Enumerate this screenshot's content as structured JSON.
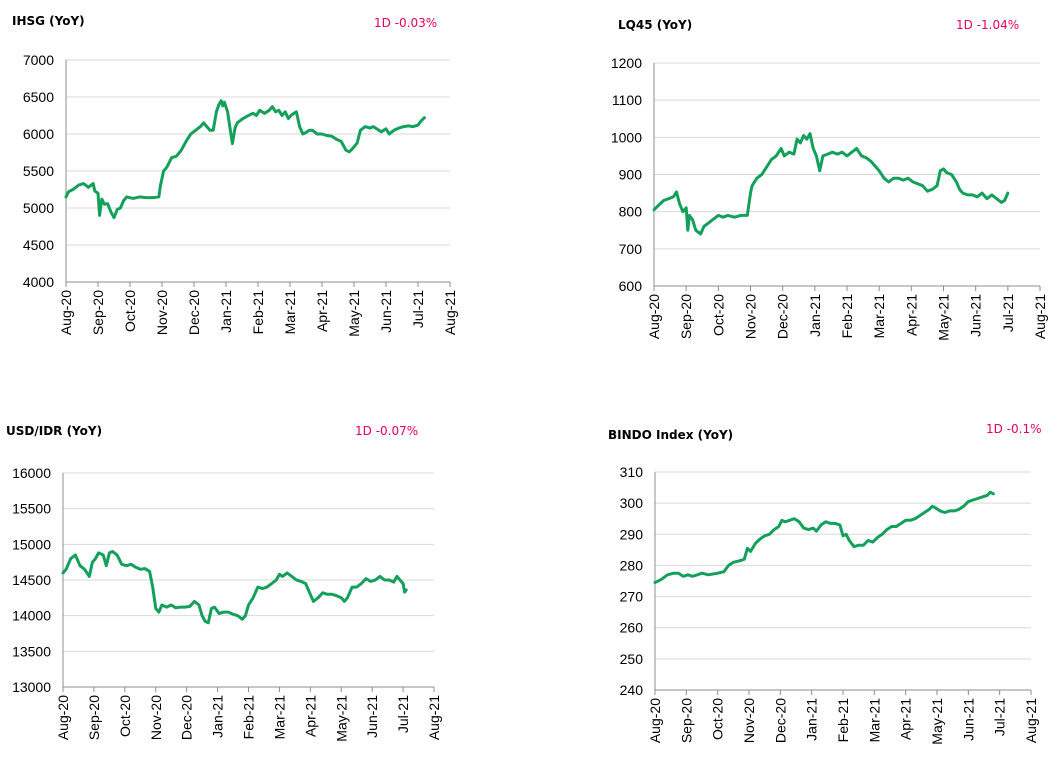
{
  "colors": {
    "line": "#12a05a",
    "change": "#e6005c",
    "grid": "#d9d9d9",
    "axis": "#8c8c8c"
  },
  "months": [
    "Aug-20",
    "Sep-20",
    "Oct-20",
    "Nov-20",
    "Dec-20",
    "Jan-21",
    "Feb-21",
    "Mar-21",
    "Apr-21",
    "May-21",
    "Jun-21",
    "Jul-21",
    "Aug-21"
  ],
  "chart_data": [
    {
      "id": "ihsg",
      "type": "line",
      "title": "IHSG (YoY)",
      "change": "1D -0.03%",
      "ylim": [
        4000,
        7000
      ],
      "yticks": [
        4000,
        4500,
        5000,
        5500,
        6000,
        6500,
        7000
      ],
      "points": [
        [
          0,
          5150
        ],
        [
          0.08,
          5220
        ],
        [
          0.22,
          5250
        ],
        [
          0.4,
          5310
        ],
        [
          0.55,
          5330
        ],
        [
          0.7,
          5280
        ],
        [
          0.85,
          5330
        ],
        [
          0.9,
          5230
        ],
        [
          1.0,
          5200
        ],
        [
          1.05,
          4900
        ],
        [
          1.12,
          5120
        ],
        [
          1.2,
          5050
        ],
        [
          1.3,
          5060
        ],
        [
          1.4,
          4950
        ],
        [
          1.5,
          4870
        ],
        [
          1.6,
          4980
        ],
        [
          1.7,
          5000
        ],
        [
          1.8,
          5100
        ],
        [
          1.9,
          5150
        ],
        [
          2.1,
          5130
        ],
        [
          2.3,
          5150
        ],
        [
          2.5,
          5140
        ],
        [
          2.7,
          5140
        ],
        [
          2.9,
          5150
        ],
        [
          2.95,
          5300
        ],
        [
          3.05,
          5500
        ],
        [
          3.15,
          5550
        ],
        [
          3.3,
          5680
        ],
        [
          3.45,
          5700
        ],
        [
          3.6,
          5780
        ],
        [
          3.75,
          5900
        ],
        [
          3.9,
          6000
        ],
        [
          4.05,
          6050
        ],
        [
          4.2,
          6100
        ],
        [
          4.3,
          6150
        ],
        [
          4.4,
          6100
        ],
        [
          4.5,
          6050
        ],
        [
          4.6,
          6050
        ],
        [
          4.7,
          6300
        ],
        [
          4.78,
          6400
        ],
        [
          4.85,
          6450
        ],
        [
          4.9,
          6380
        ],
        [
          4.95,
          6430
        ],
        [
          5.05,
          6300
        ],
        [
          5.12,
          6100
        ],
        [
          5.2,
          5870
        ],
        [
          5.28,
          6080
        ],
        [
          5.35,
          6150
        ],
        [
          5.5,
          6200
        ],
        [
          5.7,
          6250
        ],
        [
          5.85,
          6280
        ],
        [
          5.95,
          6250
        ],
        [
          6.05,
          6320
        ],
        [
          6.2,
          6280
        ],
        [
          6.35,
          6320
        ],
        [
          6.45,
          6370
        ],
        [
          6.55,
          6300
        ],
        [
          6.65,
          6320
        ],
        [
          6.75,
          6250
        ],
        [
          6.85,
          6300
        ],
        [
          6.95,
          6210
        ],
        [
          7.05,
          6260
        ],
        [
          7.2,
          6300
        ],
        [
          7.3,
          6100
        ],
        [
          7.4,
          6000
        ],
        [
          7.5,
          6020
        ],
        [
          7.6,
          6050
        ],
        [
          7.7,
          6050
        ],
        [
          7.85,
          6000
        ],
        [
          8.0,
          6000
        ],
        [
          8.15,
          5980
        ],
        [
          8.3,
          5970
        ],
        [
          8.45,
          5930
        ],
        [
          8.6,
          5900
        ],
        [
          8.75,
          5780
        ],
        [
          8.85,
          5760
        ],
        [
          8.95,
          5800
        ],
        [
          9.1,
          5880
        ],
        [
          9.2,
          6050
        ],
        [
          9.35,
          6100
        ],
        [
          9.5,
          6080
        ],
        [
          9.6,
          6100
        ],
        [
          9.75,
          6060
        ],
        [
          9.85,
          6030
        ],
        [
          10.0,
          6070
        ],
        [
          10.1,
          6000
        ],
        [
          10.25,
          6050
        ],
        [
          10.4,
          6080
        ],
        [
          10.55,
          6100
        ],
        [
          10.7,
          6110
        ],
        [
          10.85,
          6100
        ],
        [
          11.0,
          6120
        ],
        [
          11.1,
          6180
        ],
        [
          11.2,
          6220
        ]
      ]
    },
    {
      "id": "lq45",
      "type": "line",
      "title": "LQ45 (YoY)",
      "change": "1D -1.04%",
      "ylim": [
        600,
        1200
      ],
      "yticks": [
        600,
        700,
        800,
        900,
        1000,
        1100,
        1200
      ],
      "points": [
        [
          0,
          805
        ],
        [
          0.08,
          812
        ],
        [
          0.2,
          822
        ],
        [
          0.3,
          830
        ],
        [
          0.45,
          835
        ],
        [
          0.6,
          840
        ],
        [
          0.7,
          853
        ],
        [
          0.8,
          820
        ],
        [
          0.9,
          800
        ],
        [
          1.0,
          810
        ],
        [
          1.05,
          750
        ],
        [
          1.1,
          790
        ],
        [
          1.2,
          778
        ],
        [
          1.3,
          750
        ],
        [
          1.45,
          740
        ],
        [
          1.55,
          760
        ],
        [
          1.7,
          770
        ],
        [
          1.85,
          780
        ],
        [
          2.0,
          790
        ],
        [
          2.15,
          785
        ],
        [
          2.3,
          790
        ],
        [
          2.5,
          785
        ],
        [
          2.7,
          790
        ],
        [
          2.9,
          790
        ],
        [
          3.0,
          850
        ],
        [
          3.05,
          870
        ],
        [
          3.2,
          890
        ],
        [
          3.35,
          900
        ],
        [
          3.5,
          920
        ],
        [
          3.65,
          940
        ],
        [
          3.8,
          950
        ],
        [
          3.95,
          970
        ],
        [
          4.05,
          950
        ],
        [
          4.2,
          960
        ],
        [
          4.35,
          955
        ],
        [
          4.45,
          995
        ],
        [
          4.55,
          985
        ],
        [
          4.65,
          1005
        ],
        [
          4.75,
          995
        ],
        [
          4.85,
          1010
        ],
        [
          4.95,
          970
        ],
        [
          5.05,
          950
        ],
        [
          5.15,
          910
        ],
        [
          5.25,
          950
        ],
        [
          5.4,
          955
        ],
        [
          5.55,
          960
        ],
        [
          5.7,
          955
        ],
        [
          5.85,
          960
        ],
        [
          6.0,
          950
        ],
        [
          6.15,
          960
        ],
        [
          6.3,
          970
        ],
        [
          6.45,
          950
        ],
        [
          6.6,
          945
        ],
        [
          6.75,
          935
        ],
        [
          6.9,
          920
        ],
        [
          7.0,
          910
        ],
        [
          7.15,
          890
        ],
        [
          7.3,
          880
        ],
        [
          7.45,
          890
        ],
        [
          7.6,
          890
        ],
        [
          7.75,
          885
        ],
        [
          7.9,
          890
        ],
        [
          8.05,
          880
        ],
        [
          8.2,
          875
        ],
        [
          8.35,
          870
        ],
        [
          8.5,
          855
        ],
        [
          8.65,
          860
        ],
        [
          8.8,
          870
        ],
        [
          8.9,
          910
        ],
        [
          9.0,
          915
        ],
        [
          9.1,
          905
        ],
        [
          9.25,
          900
        ],
        [
          9.4,
          880
        ],
        [
          9.5,
          860
        ],
        [
          9.6,
          850
        ],
        [
          9.75,
          845
        ],
        [
          9.9,
          845
        ],
        [
          10.05,
          840
        ],
        [
          10.2,
          850
        ],
        [
          10.35,
          835
        ],
        [
          10.5,
          845
        ],
        [
          10.65,
          835
        ],
        [
          10.8,
          825
        ],
        [
          10.9,
          830
        ],
        [
          11.0,
          850
        ]
      ]
    },
    {
      "id": "usdidr",
      "type": "line",
      "title": "USD/IDR  (YoY)",
      "change": "1D -0.07%",
      "ylim": [
        13000,
        16000
      ],
      "yticks": [
        13000,
        13500,
        14000,
        14500,
        15000,
        15500,
        16000
      ],
      "points": [
        [
          0,
          14600
        ],
        [
          0.1,
          14650
        ],
        [
          0.25,
          14800
        ],
        [
          0.4,
          14850
        ],
        [
          0.55,
          14700
        ],
        [
          0.7,
          14650
        ],
        [
          0.85,
          14550
        ],
        [
          0.95,
          14750
        ],
        [
          1.05,
          14800
        ],
        [
          1.15,
          14880
        ],
        [
          1.3,
          14850
        ],
        [
          1.4,
          14700
        ],
        [
          1.5,
          14880
        ],
        [
          1.6,
          14900
        ],
        [
          1.75,
          14850
        ],
        [
          1.9,
          14720
        ],
        [
          2.05,
          14700
        ],
        [
          2.2,
          14720
        ],
        [
          2.35,
          14680
        ],
        [
          2.5,
          14650
        ],
        [
          2.65,
          14660
        ],
        [
          2.8,
          14620
        ],
        [
          2.9,
          14400
        ],
        [
          3.0,
          14100
        ],
        [
          3.1,
          14050
        ],
        [
          3.2,
          14150
        ],
        [
          3.35,
          14120
        ],
        [
          3.5,
          14150
        ],
        [
          3.65,
          14110
        ],
        [
          3.8,
          14120
        ],
        [
          3.95,
          14120
        ],
        [
          4.1,
          14130
        ],
        [
          4.25,
          14200
        ],
        [
          4.4,
          14150
        ],
        [
          4.5,
          14000
        ],
        [
          4.6,
          13920
        ],
        [
          4.7,
          13900
        ],
        [
          4.8,
          14100
        ],
        [
          4.9,
          14120
        ],
        [
          5.05,
          14030
        ],
        [
          5.2,
          14050
        ],
        [
          5.35,
          14050
        ],
        [
          5.5,
          14020
        ],
        [
          5.65,
          14000
        ],
        [
          5.8,
          13950
        ],
        [
          5.9,
          14000
        ],
        [
          6.0,
          14150
        ],
        [
          6.15,
          14250
        ],
        [
          6.3,
          14400
        ],
        [
          6.45,
          14380
        ],
        [
          6.6,
          14400
        ],
        [
          6.75,
          14450
        ],
        [
          6.9,
          14500
        ],
        [
          7.0,
          14580
        ],
        [
          7.1,
          14550
        ],
        [
          7.25,
          14600
        ],
        [
          7.4,
          14550
        ],
        [
          7.55,
          14500
        ],
        [
          7.7,
          14480
        ],
        [
          7.85,
          14450
        ],
        [
          8.0,
          14300
        ],
        [
          8.1,
          14200
        ],
        [
          8.25,
          14250
        ],
        [
          8.4,
          14320
        ],
        [
          8.55,
          14300
        ],
        [
          8.7,
          14300
        ],
        [
          8.85,
          14280
        ],
        [
          9.0,
          14250
        ],
        [
          9.1,
          14200
        ],
        [
          9.2,
          14250
        ],
        [
          9.35,
          14400
        ],
        [
          9.5,
          14400
        ],
        [
          9.65,
          14450
        ],
        [
          9.8,
          14520
        ],
        [
          9.95,
          14480
        ],
        [
          10.1,
          14500
        ],
        [
          10.25,
          14550
        ],
        [
          10.4,
          14500
        ],
        [
          10.55,
          14500
        ],
        [
          10.7,
          14470
        ],
        [
          10.8,
          14550
        ],
        [
          10.9,
          14500
        ],
        [
          11.0,
          14450
        ],
        [
          11.05,
          14330
        ],
        [
          11.1,
          14360
        ]
      ]
    },
    {
      "id": "bindo",
      "type": "line",
      "title": "BINDO Index (YoY)",
      "change": "1D -0.1%",
      "ylim": [
        240,
        310
      ],
      "yticks": [
        240,
        250,
        260,
        270,
        280,
        290,
        300,
        310
      ],
      "points": [
        [
          0,
          274.5
        ],
        [
          0.2,
          275.5
        ],
        [
          0.4,
          277
        ],
        [
          0.6,
          277.5
        ],
        [
          0.75,
          277.5
        ],
        [
          0.9,
          276.5
        ],
        [
          1.05,
          277
        ],
        [
          1.2,
          276.5
        ],
        [
          1.35,
          277
        ],
        [
          1.5,
          277.5
        ],
        [
          1.7,
          277
        ],
        [
          2.0,
          277.5
        ],
        [
          2.2,
          278
        ],
        [
          2.35,
          280
        ],
        [
          2.5,
          281
        ],
        [
          2.7,
          281.5
        ],
        [
          2.85,
          282
        ],
        [
          2.95,
          285.5
        ],
        [
          3.05,
          284.5
        ],
        [
          3.2,
          287
        ],
        [
          3.35,
          288.5
        ],
        [
          3.5,
          289.5
        ],
        [
          3.65,
          290
        ],
        [
          3.8,
          291.5
        ],
        [
          3.95,
          292.5
        ],
        [
          4.05,
          294.5
        ],
        [
          4.15,
          294
        ],
        [
          4.3,
          294.5
        ],
        [
          4.45,
          295
        ],
        [
          4.6,
          294
        ],
        [
          4.75,
          292
        ],
        [
          4.9,
          291.5
        ],
        [
          5.05,
          292
        ],
        [
          5.15,
          291
        ],
        [
          5.3,
          293
        ],
        [
          5.45,
          294
        ],
        [
          5.6,
          293.5
        ],
        [
          5.75,
          293.5
        ],
        [
          5.9,
          293
        ],
        [
          6.0,
          289.5
        ],
        [
          6.1,
          290
        ],
        [
          6.2,
          288
        ],
        [
          6.35,
          286
        ],
        [
          6.5,
          286.5
        ],
        [
          6.65,
          286.5
        ],
        [
          6.8,
          288
        ],
        [
          6.95,
          287.5
        ],
        [
          7.1,
          289
        ],
        [
          7.25,
          290
        ],
        [
          7.4,
          291.5
        ],
        [
          7.55,
          292.5
        ],
        [
          7.7,
          292.5
        ],
        [
          7.85,
          293.5
        ],
        [
          8.0,
          294.5
        ],
        [
          8.15,
          294.5
        ],
        [
          8.3,
          295
        ],
        [
          8.45,
          296
        ],
        [
          8.6,
          297
        ],
        [
          8.75,
          298
        ],
        [
          8.85,
          299
        ],
        [
          8.95,
          298.5
        ],
        [
          9.1,
          297.5
        ],
        [
          9.25,
          297
        ],
        [
          9.4,
          297.5
        ],
        [
          9.55,
          297.5
        ],
        [
          9.7,
          298
        ],
        [
          9.85,
          299
        ],
        [
          10.0,
          300.5
        ],
        [
          10.15,
          301
        ],
        [
          10.3,
          301.5
        ],
        [
          10.45,
          302
        ],
        [
          10.6,
          302.5
        ],
        [
          10.7,
          303.5
        ],
        [
          10.8,
          303
        ]
      ]
    }
  ]
}
